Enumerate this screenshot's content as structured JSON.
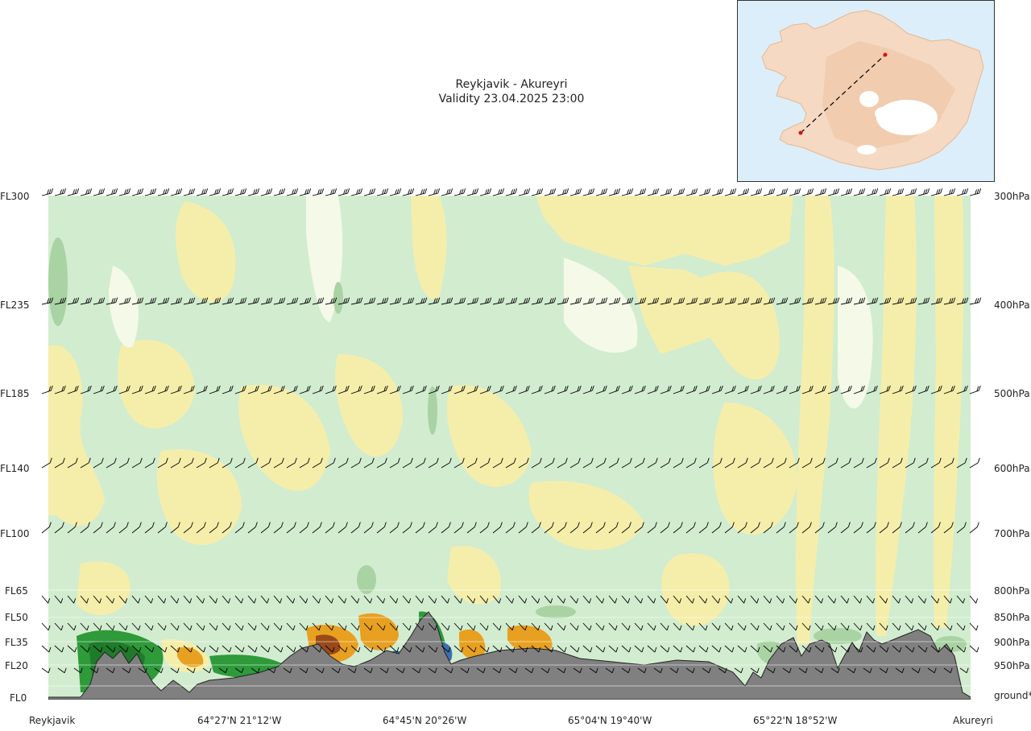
{
  "title": {
    "route": "Reykjavik - Akureyri",
    "validity": "Validity 23.04.2025 23:00"
  },
  "chart_data": {
    "type": "vertical-cross-section",
    "levels_left": [
      "FL300",
      "FL235",
      "FL185",
      "FL140",
      "FL100",
      "FL65",
      "FL50",
      "FL35",
      "FL20",
      "FL0"
    ],
    "levels_right": [
      "300hPa",
      "400hPa",
      "500hPa",
      "600hPa",
      "700hPa",
      "800hPa",
      "850hPa",
      "900hPa",
      "950hPa",
      "ground*"
    ],
    "x_labels": [
      "Reykjavik",
      "64°27'N 21°12'W",
      "64°45'N 20°26'W",
      "65°04'N 19°40'W",
      "65°22'N 18°52'W",
      "Akureyri"
    ],
    "route_start": "Reykjavik",
    "route_end": "Akureyri",
    "colors": {
      "yellow": "#f5eeaa",
      "light_green": "#d2ecd0",
      "pale": "#f4f9e8",
      "mid_green": "#a9d3a3",
      "dark_green": "#2e9a3a",
      "orange": "#e8a020",
      "brown": "#9a4a18",
      "blue": "#3a6fb0",
      "terrain": "#808080",
      "sea": "#dbeefa",
      "land": "#f5d9c2",
      "route": "#000000",
      "endpoint": "#dd1111"
    }
  }
}
